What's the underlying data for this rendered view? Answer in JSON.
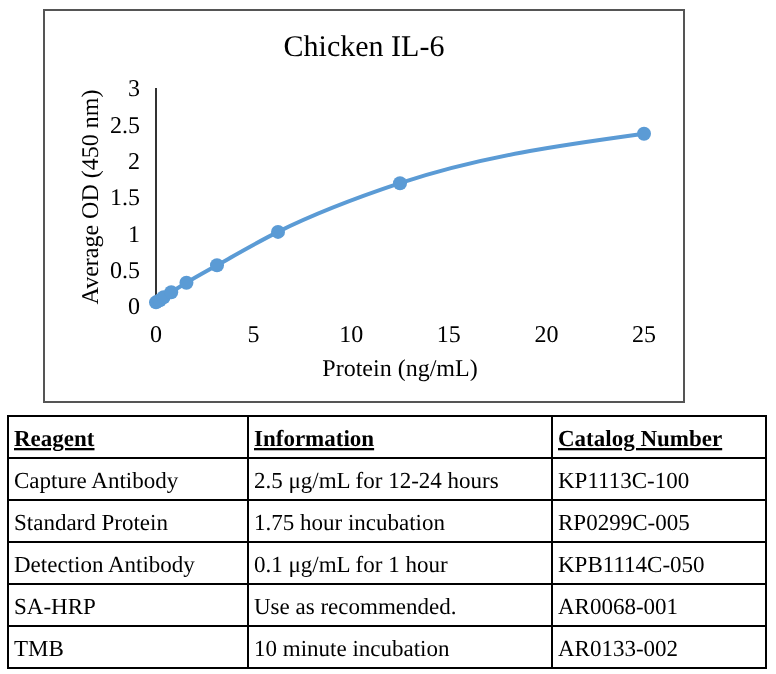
{
  "chart_data": [
    {
      "type": "line",
      "title": "Chicken IL-6",
      "xlabel": "Protein (ng/mL)",
      "ylabel": "Average OD (450 nm)",
      "x": [
        0,
        0.195,
        0.39,
        0.78,
        1.56,
        3.125,
        6.25,
        12.5,
        25
      ],
      "series": [
        {
          "color": "#5b9bd5",
          "values": [
            0.05,
            0.08,
            0.12,
            0.19,
            0.32,
            0.56,
            1.02,
            1.69,
            2.37
          ]
        }
      ],
      "xlim": [
        0,
        25
      ],
      "xticks": [
        0,
        5,
        10,
        15,
        20,
        25
      ],
      "ylim": [
        0,
        3
      ],
      "yticks": [
        0,
        0.5,
        1,
        1.5,
        2,
        2.5,
        3
      ],
      "marker": "circle",
      "line_style": "solid"
    },
    {
      "type": "other",
      "categories": [
        "Reagent",
        "Information",
        "Catalog Number"
      ],
      "annotations": [
        "Capture Antibody",
        "2.5 μg/mL for 12-24 hours",
        "KP1113C-100",
        "Standard Protein",
        "1.75 hour incubation",
        "RP0299C-005",
        "Detection Antibody",
        "0.1 μg/mL for 1 hour",
        "KPB1114C-050",
        "SA-HRP",
        "Use as recommended.",
        "AR0068-001",
        "TMB",
        "10 minute incubation",
        "AR0133-002"
      ]
    }
  ]
}
